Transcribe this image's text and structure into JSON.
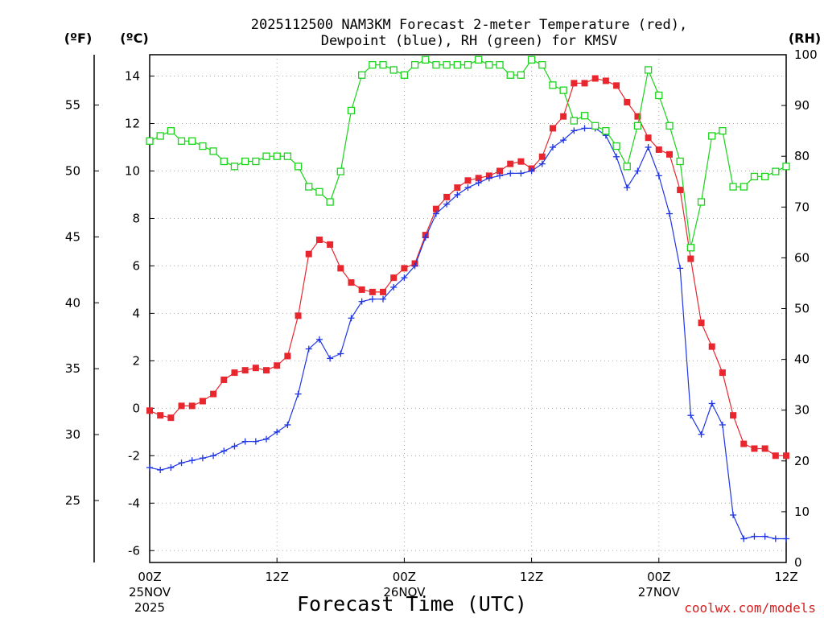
{
  "chart_data": {
    "type": "line",
    "title_line1": "2025112500 NAM3KM Forecast 2-meter Temperature (red),",
    "title_line2": "Dewpoint (blue), RH (green) for KMSV",
    "xlabel": "Forecast Time (UTC)",
    "credit": "coolwx.com/models",
    "axis_label_f": "(ºF)",
    "axis_label_c": "(ºC)",
    "axis_label_rh": "(RH)",
    "hours_range": [
      0,
      60
    ],
    "ylim_c": [
      -6.5,
      14.9
    ],
    "ylim_rh": [
      0,
      100
    ],
    "ylim_f": [
      20.3,
      58.82
    ],
    "y_ticks_c": [
      "-6",
      "-4",
      "-2",
      "0",
      "2",
      "4",
      "6",
      "8",
      "10",
      "12",
      "14"
    ],
    "y_ticks_rh": [
      "0",
      "10",
      "20",
      "30",
      "40",
      "50",
      "60",
      "70",
      "80",
      "90",
      "100"
    ],
    "y_ticks_f": [
      "25",
      "30",
      "35",
      "40",
      "45",
      "50",
      "55"
    ],
    "x_ticks": [
      {
        "hour": 0,
        "l1": "00Z",
        "l2": "25NOV",
        "l3": "2025"
      },
      {
        "hour": 12,
        "l1": "12Z",
        "l2": "",
        "l3": ""
      },
      {
        "hour": 24,
        "l1": "00Z",
        "l2": "26NOV",
        "l3": ""
      },
      {
        "hour": 36,
        "l1": "12Z",
        "l2": "",
        "l3": ""
      },
      {
        "hour": 48,
        "l1": "00Z",
        "l2": "27NOV",
        "l3": ""
      },
      {
        "hour": 60,
        "l1": "12Z",
        "l2": "",
        "l3": ""
      }
    ],
    "series": [
      {
        "name": "Temperature (C)",
        "color": "#e8262e",
        "marker": "filled-square",
        "axis": "c",
        "values": [
          -0.1,
          -0.3,
          -0.4,
          0.1,
          0.1,
          0.3,
          0.6,
          1.2,
          1.5,
          1.6,
          1.7,
          1.6,
          1.8,
          2.2,
          3.9,
          6.5,
          7.1,
          6.9,
          5.9,
          5.3,
          5.0,
          4.9,
          4.9,
          5.5,
          5.9,
          6.1,
          7.3,
          8.4,
          8.9,
          9.3,
          9.6,
          9.7,
          9.8,
          10.0,
          10.3,
          10.4,
          10.1,
          10.6,
          11.8,
          12.3,
          13.7,
          13.7,
          13.9,
          13.8,
          13.6,
          12.9,
          12.3,
          11.4,
          10.9,
          10.7,
          9.2,
          6.3,
          3.6,
          2.6,
          1.5,
          -0.3,
          -1.5,
          -1.7,
          -1.7,
          -2.0,
          -2.0
        ]
      },
      {
        "name": "Dewpoint (C)",
        "color": "#1f35e6",
        "marker": "plus",
        "axis": "c",
        "values": [
          -2.5,
          -2.6,
          -2.5,
          -2.3,
          -2.2,
          -2.1,
          -2.0,
          -1.8,
          -1.6,
          -1.4,
          -1.4,
          -1.3,
          -1.0,
          -0.7,
          0.6,
          2.5,
          2.9,
          2.1,
          2.3,
          3.8,
          4.5,
          4.6,
          4.6,
          5.1,
          5.5,
          6.0,
          7.2,
          8.2,
          8.6,
          9.0,
          9.3,
          9.5,
          9.7,
          9.8,
          9.9,
          9.9,
          10.0,
          10.3,
          11.0,
          11.3,
          11.7,
          11.8,
          11.8,
          11.5,
          10.6,
          9.3,
          10.0,
          11.0,
          9.8,
          8.2,
          5.9,
          -0.3,
          -1.1,
          0.2,
          -0.7,
          -4.5,
          -5.5,
          -5.4,
          -5.4,
          -5.5,
          -5.5
        ]
      },
      {
        "name": "RH (%)",
        "color": "#1ad41a",
        "marker": "open-square",
        "axis": "rh",
        "values": [
          83,
          84,
          85,
          83,
          83,
          82,
          81,
          79,
          78,
          79,
          79,
          80,
          80,
          80,
          78,
          74,
          73,
          71,
          77,
          89,
          96,
          98,
          98,
          97,
          96,
          98,
          99,
          98,
          98,
          98,
          98,
          99,
          98,
          98,
          96,
          96,
          99,
          98,
          94,
          93,
          87,
          88,
          86,
          85,
          82,
          78,
          86,
          97,
          92,
          86,
          79,
          62,
          71,
          84,
          85,
          74,
          74,
          76,
          76,
          77,
          78
        ]
      }
    ]
  }
}
